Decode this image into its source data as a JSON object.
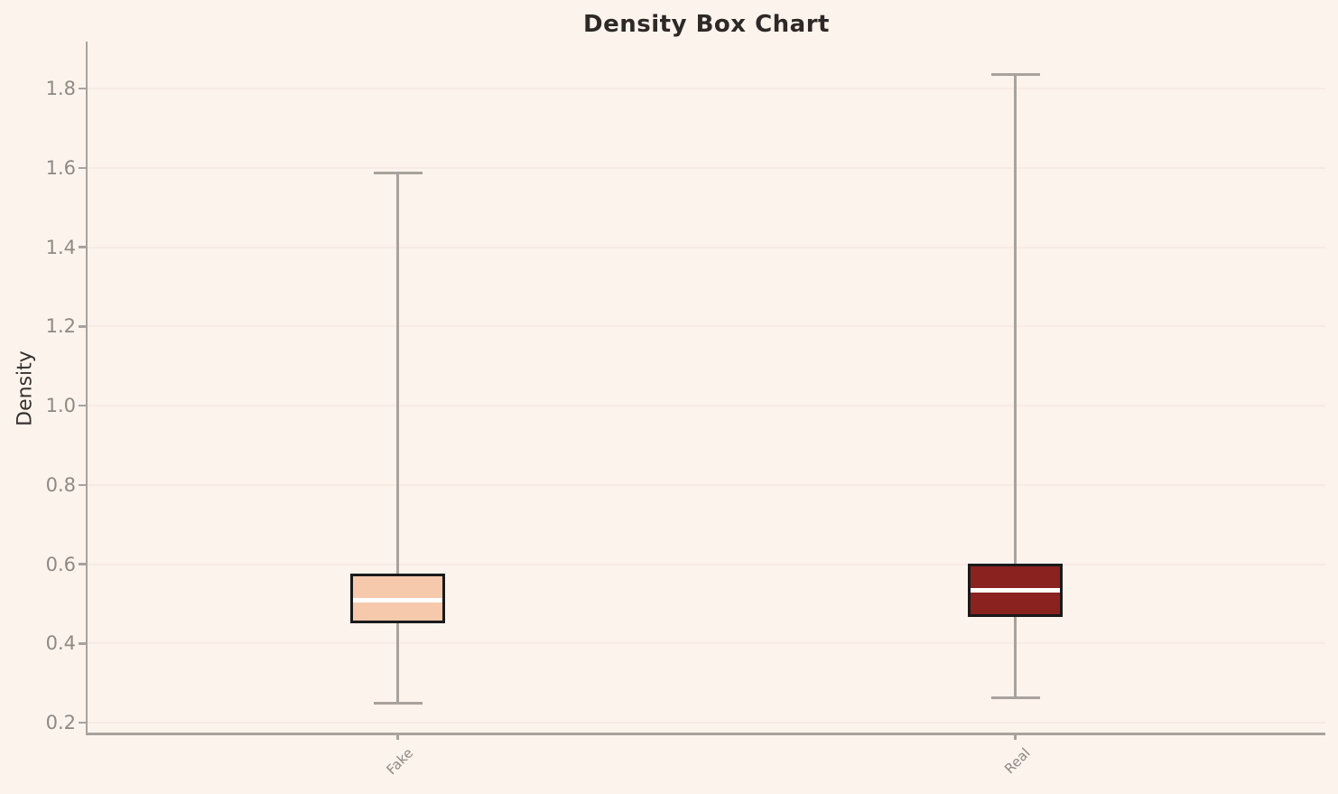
{
  "chart_data": {
    "type": "box",
    "title": "Density Box Chart",
    "xlabel": "",
    "ylabel": "Density",
    "categories": [
      "Fake",
      "Real"
    ],
    "yticks": [
      0.2,
      0.4,
      0.6,
      0.8,
      1.0,
      1.2,
      1.4,
      1.6,
      1.8
    ],
    "ylim": [
      0.175,
      1.919
    ],
    "grid": "horizontal",
    "legend": "none",
    "series": [
      {
        "name": "Fake",
        "whisker_low": 0.25,
        "q1": 0.451,
        "median": 0.508,
        "q3": 0.576,
        "whisker_high": 1.588,
        "fill_color": "#f6c9ad"
      },
      {
        "name": "Real",
        "whisker_low": 0.262,
        "q1": 0.467,
        "median": 0.533,
        "q3": 0.601,
        "whisker_high": 1.836,
        "fill_color": "#8a2220"
      }
    ],
    "colors": {
      "background": "#fdf3ed",
      "box_border": "#1a1a1a",
      "median_line": "#ffffff",
      "whisker": "#a9a29c",
      "axis_spine": "#a9a29c",
      "gridline": "#f7ebe4",
      "tick_label": "#8f8983",
      "title": "#2d2926",
      "axis_label": "#36312e"
    }
  }
}
